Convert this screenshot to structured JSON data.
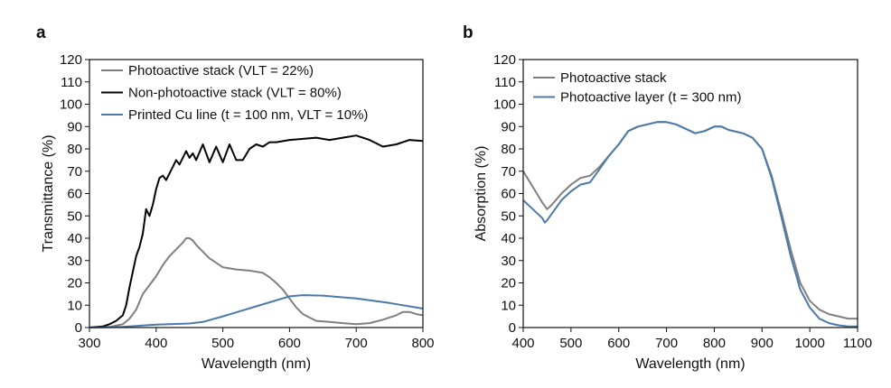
{
  "chart_data": [
    {
      "panel_label": "a",
      "type": "line",
      "title": "",
      "xlabel": "Wavelength (nm)",
      "ylabel": "Transmittance (%)",
      "xlim": [
        300,
        800
      ],
      "ylim": [
        0,
        120
      ],
      "xticks": [
        300,
        400,
        500,
        600,
        700,
        800
      ],
      "yticks": [
        0,
        10,
        20,
        30,
        40,
        50,
        60,
        70,
        80,
        90,
        100,
        110,
        120
      ],
      "legend_position": "top-left",
      "grid": false,
      "series": [
        {
          "name": "Photoactive stack (VLT = 22%)",
          "color": "#7f7f7f",
          "x": [
            300,
            330,
            350,
            360,
            370,
            380,
            390,
            400,
            410,
            420,
            430,
            440,
            445,
            450,
            455,
            460,
            470,
            480,
            490,
            500,
            520,
            540,
            560,
            570,
            580,
            590,
            600,
            610,
            620,
            640,
            660,
            680,
            700,
            720,
            740,
            760,
            770,
            780,
            790,
            800
          ],
          "y": [
            0,
            0.3,
            1.5,
            4,
            8,
            15,
            19,
            23,
            28,
            32,
            35,
            38,
            40,
            40,
            39,
            37,
            34,
            31,
            29,
            27,
            26,
            25.5,
            24.5,
            22.5,
            20,
            17,
            13,
            9,
            6,
            3,
            2.5,
            2,
            1.5,
            2,
            3.5,
            5.5,
            7,
            7,
            6,
            5.5
          ]
        },
        {
          "name": "Non-photoactive stack (VLT = 80%)",
          "color": "#000000",
          "x": [
            300,
            320,
            330,
            340,
            350,
            355,
            360,
            365,
            370,
            375,
            380,
            385,
            390,
            395,
            400,
            405,
            410,
            415,
            420,
            425,
            430,
            435,
            440,
            445,
            450,
            455,
            460,
            470,
            480,
            490,
            500,
            510,
            520,
            530,
            540,
            550,
            560,
            570,
            580,
            600,
            620,
            640,
            660,
            680,
            700,
            720,
            740,
            760,
            780,
            800
          ],
          "y": [
            0,
            0.5,
            1.5,
            3,
            5.5,
            10,
            18,
            25,
            32,
            36,
            42,
            53,
            50,
            55,
            62,
            67,
            68,
            66,
            69,
            72,
            75,
            73,
            76,
            79,
            76,
            78,
            75,
            82,
            74,
            81,
            74,
            82,
            75,
            75,
            80,
            82,
            81,
            83,
            83,
            84,
            84.5,
            85,
            84,
            85,
            86,
            84,
            81,
            82,
            84,
            83.5
          ]
        },
        {
          "name": "Printed Cu line (t = 100 nm, VLT = 10%)",
          "color": "#4a7aab",
          "x": [
            300,
            350,
            400,
            450,
            470,
            500,
            550,
            600,
            620,
            650,
            700,
            750,
            800
          ],
          "y": [
            0,
            0.3,
            1.3,
            1.8,
            2.5,
            5,
            9.5,
            14,
            14.5,
            14.3,
            13,
            11,
            8.5
          ]
        }
      ]
    },
    {
      "panel_label": "b",
      "type": "line",
      "title": "",
      "xlabel": "Wavelength (nm)",
      "ylabel": "Absorption (%)",
      "xlim": [
        400,
        1100
      ],
      "ylim": [
        0,
        120
      ],
      "xticks": [
        400,
        500,
        600,
        700,
        800,
        900,
        1000,
        1100
      ],
      "yticks": [
        0,
        10,
        20,
        30,
        40,
        50,
        60,
        70,
        80,
        90,
        100,
        110,
        120
      ],
      "legend_position": "top-left",
      "grid": false,
      "series": [
        {
          "name": "Photoactive stack",
          "color": "#7f7f7f",
          "x": [
            400,
            420,
            440,
            450,
            460,
            480,
            500,
            520,
            540,
            560,
            580,
            600,
            620,
            640,
            660,
            680,
            700,
            720,
            740,
            760,
            780,
            800,
            815,
            830,
            860,
            880,
            900,
            920,
            940,
            960,
            980,
            1000,
            1020,
            1040,
            1060,
            1080,
            1100
          ],
          "y": [
            70,
            63,
            56,
            53,
            55,
            60,
            64,
            67,
            68,
            72,
            77,
            82,
            88,
            90,
            91,
            92,
            92,
            91,
            89,
            87,
            88,
            90,
            90,
            88.5,
            87,
            85,
            80,
            68,
            52,
            35,
            20,
            12,
            8,
            6,
            5,
            4,
            4
          ]
        },
        {
          "name": "Photoactive layer (t = 300 nm)",
          "color": "#4a7aab",
          "x": [
            400,
            420,
            440,
            445,
            450,
            460,
            480,
            500,
            520,
            540,
            560,
            580,
            600,
            620,
            640,
            660,
            680,
            700,
            720,
            740,
            760,
            780,
            800,
            815,
            830,
            860,
            880,
            900,
            920,
            940,
            960,
            980,
            1000,
            1020,
            1040,
            1060,
            1080,
            1100
          ],
          "y": [
            57,
            53,
            49,
            47,
            48,
            51,
            57,
            61,
            64,
            65,
            71,
            77,
            82,
            88,
            90,
            91,
            92,
            92,
            91,
            89,
            87,
            88,
            90,
            90,
            88.5,
            87,
            85,
            80,
            67,
            50,
            32,
            17,
            9,
            4,
            2,
            1,
            0.5,
            0.5
          ]
        }
      ]
    }
  ]
}
